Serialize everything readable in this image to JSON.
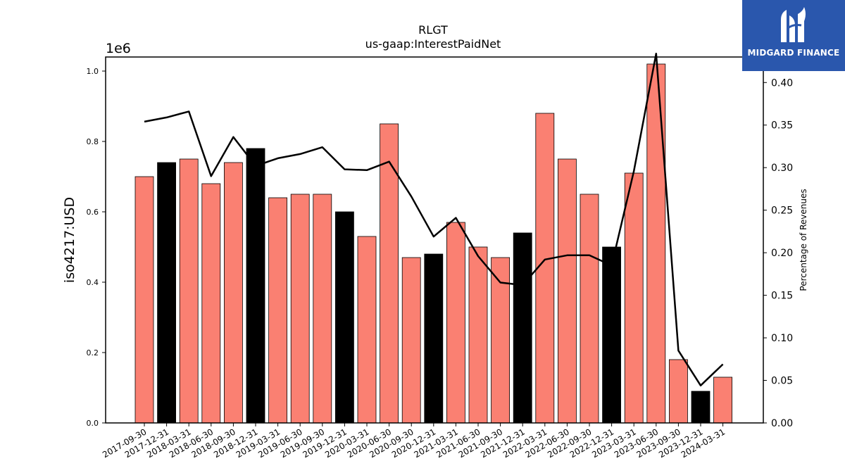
{
  "chart_data": {
    "type": "bar",
    "title": "RLGT",
    "subtitle": "us-gaap:InterestPaidNet",
    "ylabel": "iso4217:USD",
    "y_offset_text": "1e6",
    "y2label": "Percentage of Revenues",
    "ylim": [
      0,
      1.04
    ],
    "y2lim": [
      0,
      0.43
    ],
    "yticks": [
      "0.0",
      "0.2",
      "0.4",
      "0.6",
      "0.8",
      "1.0"
    ],
    "y2ticks": [
      "0.00",
      "0.05",
      "0.10",
      "0.15",
      "0.20",
      "0.25",
      "0.30",
      "0.35",
      "0.40"
    ],
    "categories": [
      "2017-09-30",
      "2017-12-31",
      "2018-03-31",
      "2018-06-30",
      "2018-09-30",
      "2018-12-31",
      "2019-03-31",
      "2019-06-30",
      "2019-09-30",
      "2019-12-31",
      "2020-03-31",
      "2020-06-30",
      "2020-09-30",
      "2020-12-31",
      "2021-03-31",
      "2021-06-30",
      "2021-09-30",
      "2021-12-31",
      "2022-03-31",
      "2022-06-30",
      "2022-09-30",
      "2022-12-31",
      "2023-03-31",
      "2023-06-30",
      "2023-09-30",
      "2023-12-31",
      "2024-03-31"
    ],
    "series": [
      {
        "values": [
          0.7,
          0.74,
          0.75,
          0.68,
          0.74,
          0.78,
          0.64,
          0.65,
          0.65,
          0.6,
          0.53,
          0.85,
          0.47,
          0.48,
          0.57,
          0.5,
          0.47,
          0.54,
          0.88,
          0.75,
          0.65,
          0.5,
          0.71,
          1.02,
          0.18,
          0.09,
          0.13
        ],
        "bar_colors": [
          "#fa8072",
          "#000000",
          "#fa8072",
          "#fa8072",
          "#fa8072",
          "#000000",
          "#fa8072",
          "#fa8072",
          "#fa8072",
          "#000000",
          "#fa8072",
          "#fa8072",
          "#fa8072",
          "#000000",
          "#fa8072",
          "#fa8072",
          "#fa8072",
          "#000000",
          "#fa8072",
          "#fa8072",
          "#fa8072",
          "#000000",
          "#fa8072",
          "#fa8072",
          "#fa8072",
          "#000000",
          "#fa8072"
        ]
      },
      {
        "type": "line",
        "axis": "right",
        "values": [
          0.354,
          0.359,
          0.366,
          0.29,
          0.336,
          0.302,
          0.311,
          0.316,
          0.324,
          0.298,
          0.297,
          0.307,
          0.266,
          0.219,
          0.241,
          0.196,
          0.165,
          0.162,
          0.192,
          0.197,
          0.197,
          0.185,
          0.296,
          0.434,
          0.085,
          0.044,
          0.069
        ],
        "color": "#000000"
      }
    ],
    "grid": false
  },
  "logo": {
    "text": "MIDGARD FINANCE"
  }
}
